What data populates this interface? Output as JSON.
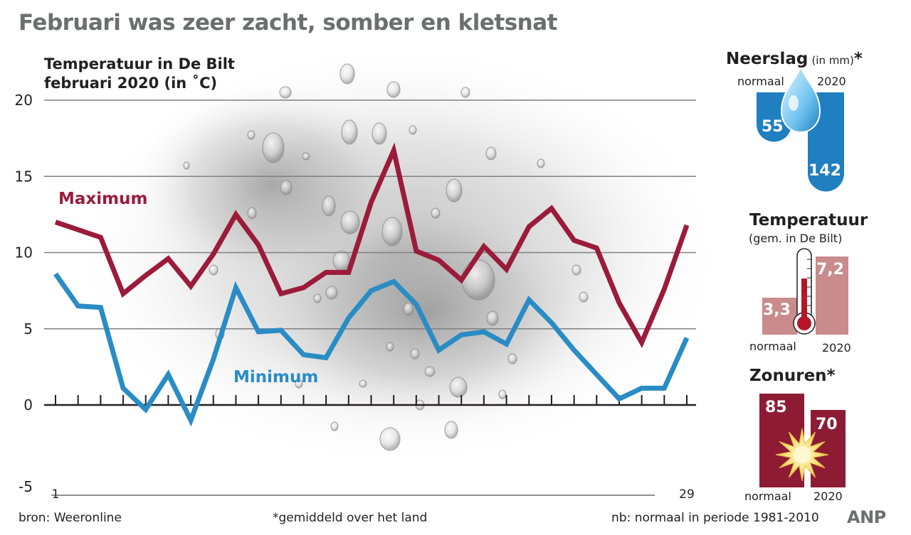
{
  "title": "Februari was zeer zacht, somber en kletsnat",
  "colors": {
    "max": "#9b1b3b",
    "min": "#2a8cc4",
    "rain": "#1f7fc0",
    "temp": "#c98b8b",
    "sun": "#8e1b34",
    "title_gray": "#6d6e70"
  },
  "chart_data": {
    "type": "line",
    "title": "Temperatuur in De Bilt februari 2020 (in ˚C)",
    "xlabel": "",
    "ylabel": "",
    "x_tick_labels": [
      "1",
      "29"
    ],
    "x": [
      1,
      2,
      3,
      4,
      5,
      6,
      7,
      8,
      9,
      10,
      11,
      12,
      13,
      14,
      15,
      16,
      17,
      18,
      19,
      20,
      21,
      22,
      23,
      24,
      25,
      26,
      27,
      28,
      29
    ],
    "ylim": [
      -5,
      20
    ],
    "y_ticks": [
      -5,
      0,
      5,
      10,
      15,
      20
    ],
    "grid": true,
    "series": [
      {
        "name": "Maximum",
        "values": [
          12.0,
          11.5,
          11.0,
          7.3,
          8.5,
          9.6,
          7.8,
          9.9,
          12.5,
          10.5,
          7.3,
          7.7,
          8.7,
          8.7,
          13.3,
          16.7,
          10.1,
          9.5,
          8.2,
          10.4,
          8.9,
          11.7,
          12.9,
          10.8,
          10.3,
          6.7,
          4.1,
          7.6,
          11.8
        ]
      },
      {
        "name": "Minimum",
        "values": [
          8.6,
          6.5,
          6.4,
          1.1,
          -0.3,
          2.0,
          -1.0,
          3.0,
          7.7,
          4.8,
          4.9,
          3.3,
          3.1,
          5.7,
          7.5,
          8.1,
          6.6,
          3.6,
          4.6,
          4.8,
          4.0,
          6.9,
          5.4,
          3.6,
          2.0,
          0.4,
          1.1,
          1.1,
          4.4
        ]
      }
    ]
  },
  "panels": {
    "neerslag": {
      "title": "Neerslag",
      "unit": "(in mm)",
      "star": "*",
      "normaal_label": "normaal",
      "year_label": "2020",
      "normaal_value": "55",
      "year_value": "142",
      "values": [
        55,
        142
      ]
    },
    "temperatuur": {
      "title": "Temperatuur",
      "subtitle": "(gem. in De Bilt)",
      "normaal_label": "normaal",
      "year_label": "2020",
      "normaal_value": "3,3",
      "year_value": "7,2",
      "values": [
        3.3,
        7.2
      ]
    },
    "zonuren": {
      "title": "Zonuren*",
      "normaal_label": "normaal",
      "year_label": "2020",
      "normaal_value": "85",
      "year_value": "70",
      "values": [
        85,
        70
      ]
    }
  },
  "footer": {
    "source": "bron: Weeronline",
    "note": "*gemiddeld over het land",
    "period": "nb: normaal in periode 1981-2010",
    "logo": "ANP"
  }
}
